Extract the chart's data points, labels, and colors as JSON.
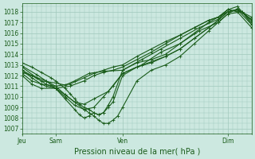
{
  "title": "",
  "xlabel": "Pression niveau de la mer( hPa )",
  "ylim": [
    1006.5,
    1018.8
  ],
  "xlim": [
    0,
    48
  ],
  "bg_color": "#cce8e0",
  "grid_color": "#a0c8bc",
  "line_color": "#1a5c1a",
  "tick_color": "#1a5c1a",
  "yticks": [
    1007,
    1008,
    1009,
    1010,
    1011,
    1012,
    1013,
    1014,
    1015,
    1016,
    1017,
    1018
  ],
  "xtick_labels": [
    "Jeu",
    "Sam",
    "Ven",
    "Dim"
  ],
  "xtick_positions": [
    0,
    7,
    21,
    43
  ],
  "minor_xtick_interval": 1,
  "minor_ytick_interval": 0.5,
  "lines": [
    {
      "x": [
        0,
        2,
        4,
        7,
        9,
        11,
        14,
        17,
        21,
        25,
        29,
        33,
        37,
        41,
        43,
        46,
        48
      ],
      "y": [
        1012.5,
        1012.0,
        1011.5,
        1011.3,
        1011.1,
        1011.5,
        1012.2,
        1012.4,
        1012.5,
        1013.5,
        1014.5,
        1015.5,
        1016.5,
        1017.3,
        1018.2,
        1018.0,
        1017.2
      ]
    },
    {
      "x": [
        0,
        2,
        5,
        7,
        9,
        11,
        13,
        15,
        18,
        21,
        25,
        29,
        33,
        37,
        41,
        43,
        46,
        48
      ],
      "y": [
        1012.3,
        1012.0,
        1011.5,
        1011.0,
        1010.2,
        1009.5,
        1009.3,
        1009.8,
        1010.5,
        1012.2,
        1013.0,
        1014.2,
        1015.0,
        1016.2,
        1017.0,
        1017.8,
        1018.0,
        1016.8
      ]
    },
    {
      "x": [
        0,
        3,
        5,
        7,
        9,
        11,
        13,
        15,
        17,
        19,
        21,
        24,
        27,
        30,
        33,
        36,
        39,
        41,
        43,
        45,
        48
      ],
      "y": [
        1012.8,
        1011.8,
        1011.2,
        1010.8,
        1010.0,
        1009.2,
        1008.8,
        1009.0,
        1010.0,
        1011.0,
        1012.2,
        1012.8,
        1013.2,
        1013.8,
        1014.5,
        1015.5,
        1016.5,
        1017.2,
        1018.0,
        1018.2,
        1017.5
      ]
    },
    {
      "x": [
        0,
        3,
        5,
        7,
        9,
        11,
        12,
        13,
        14,
        15,
        16,
        17,
        18,
        19,
        21,
        24,
        27,
        30,
        33,
        36,
        39,
        41,
        43,
        45,
        48
      ],
      "y": [
        1012.9,
        1012.1,
        1011.5,
        1010.8,
        1009.8,
        1008.8,
        1008.3,
        1008.0,
        1008.2,
        1008.5,
        1008.3,
        1008.5,
        1009.2,
        1010.0,
        1012.5,
        1013.2,
        1013.5,
        1014.0,
        1015.0,
        1016.0,
        1017.0,
        1017.5,
        1018.2,
        1018.5,
        1017.0
      ]
    },
    {
      "x": [
        0,
        2,
        4,
        6,
        7,
        9,
        10,
        11,
        12,
        13,
        14,
        15,
        16,
        17,
        18,
        19,
        21,
        24,
        27,
        30,
        33,
        36,
        39,
        41,
        43,
        45,
        48
      ],
      "y": [
        1013.2,
        1012.8,
        1012.3,
        1011.8,
        1011.5,
        1010.8,
        1010.3,
        1009.8,
        1009.3,
        1009.0,
        1008.8,
        1008.5,
        1008.3,
        1008.5,
        1009.0,
        1009.5,
        1012.0,
        1012.8,
        1013.3,
        1013.8,
        1014.5,
        1015.5,
        1016.5,
        1017.2,
        1018.0,
        1018.2,
        1017.3
      ]
    },
    {
      "x": [
        0,
        2,
        4,
        5,
        7,
        9,
        11,
        13,
        14,
        15,
        16,
        17,
        18,
        19,
        20,
        21,
        24,
        27,
        30,
        33,
        36,
        39,
        41,
        43,
        45,
        48
      ],
      "y": [
        1012.5,
        1011.8,
        1011.2,
        1011.0,
        1010.8,
        1010.2,
        1009.5,
        1008.8,
        1008.5,
        1008.2,
        1007.8,
        1007.5,
        1007.5,
        1007.8,
        1008.2,
        1009.0,
        1011.5,
        1012.5,
        1013.0,
        1013.8,
        1015.0,
        1016.2,
        1017.0,
        1017.8,
        1018.3,
        1017.2
      ]
    },
    {
      "x": [
        0,
        2,
        4,
        7,
        10,
        13,
        15,
        17,
        19,
        21,
        24,
        27,
        30,
        33,
        36,
        39,
        41,
        43,
        45,
        48
      ],
      "y": [
        1012.2,
        1011.5,
        1011.2,
        1011.0,
        1011.2,
        1011.8,
        1012.2,
        1012.5,
        1012.8,
        1013.0,
        1013.8,
        1014.5,
        1015.2,
        1015.8,
        1016.5,
        1017.2,
        1017.5,
        1018.2,
        1018.0,
        1016.5
      ]
    },
    {
      "x": [
        0,
        2,
        4,
        7,
        10,
        13,
        15,
        17,
        19,
        21,
        24,
        27,
        30,
        33,
        36,
        39,
        41,
        43,
        45,
        48
      ],
      "y": [
        1012.0,
        1011.2,
        1010.8,
        1010.8,
        1011.0,
        1011.5,
        1012.0,
        1012.3,
        1012.5,
        1012.8,
        1013.5,
        1014.2,
        1015.0,
        1015.8,
        1016.5,
        1017.2,
        1017.5,
        1018.0,
        1018.2,
        1016.8
      ]
    }
  ],
  "marker": "+",
  "markersize": 2.5,
  "linewidth": 0.8
}
